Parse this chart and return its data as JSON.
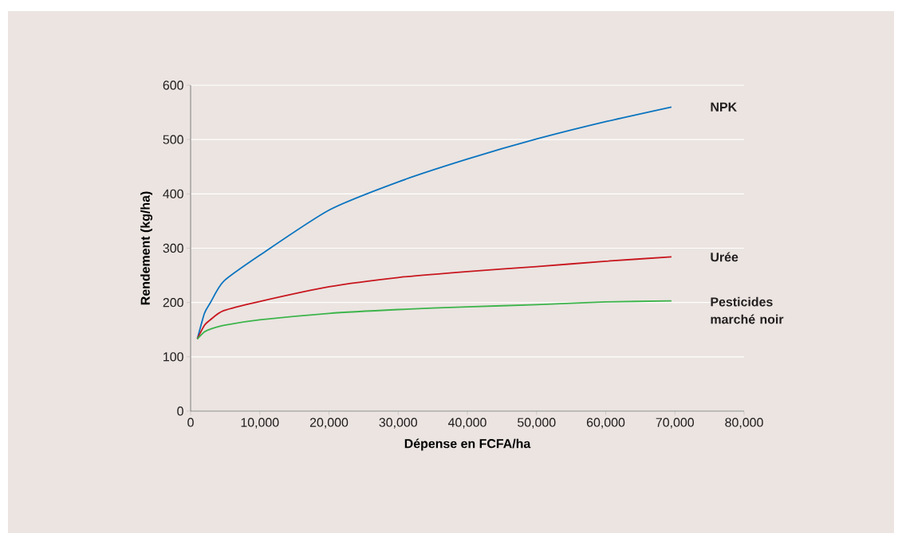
{
  "chart_data": {
    "type": "line",
    "xlabel": "Dépense en FCFA/ha",
    "ylabel": "Rendement (kg/ha)",
    "x": [
      970,
      2000,
      2830,
      4770,
      10000,
      20000,
      30000,
      40000,
      50000,
      60000,
      69500
    ],
    "series": [
      {
        "name": "NPK",
        "color": "#0a74bf",
        "values": [
          133,
          180,
          199,
          239,
          287,
          370,
          422,
          464,
          501,
          533,
          560
        ]
      },
      {
        "name": "Urée",
        "color": "#c8161e",
        "values": [
          133,
          158,
          168,
          185,
          202,
          229,
          246,
          257,
          266,
          276,
          284
        ]
      },
      {
        "name": "Pesticides marché noir",
        "color": "#3cb44a",
        "values": [
          133,
          146,
          151,
          158,
          168,
          180,
          187,
          192,
          196,
          201,
          203
        ]
      }
    ],
    "xlim": [
      0,
      80000
    ],
    "ylim": [
      0,
      600
    ],
    "xticks": [
      0,
      {
        "value": 10000,
        "label": "10,000"
      },
      {
        "value": 20000,
        "label": "20,000"
      },
      {
        "value": 30000,
        "label": "30,000"
      },
      {
        "value": 40000,
        "label": "40,000"
      },
      {
        "value": 50000,
        "label": "50,000"
      },
      {
        "value": 60000,
        "label": "60,000"
      },
      {
        "value": 70000,
        "label": "70,000"
      },
      {
        "value": 80000,
        "label": "80,000"
      }
    ],
    "yticks": [
      0,
      100,
      200,
      300,
      400,
      500,
      600
    ],
    "grid": "y"
  }
}
